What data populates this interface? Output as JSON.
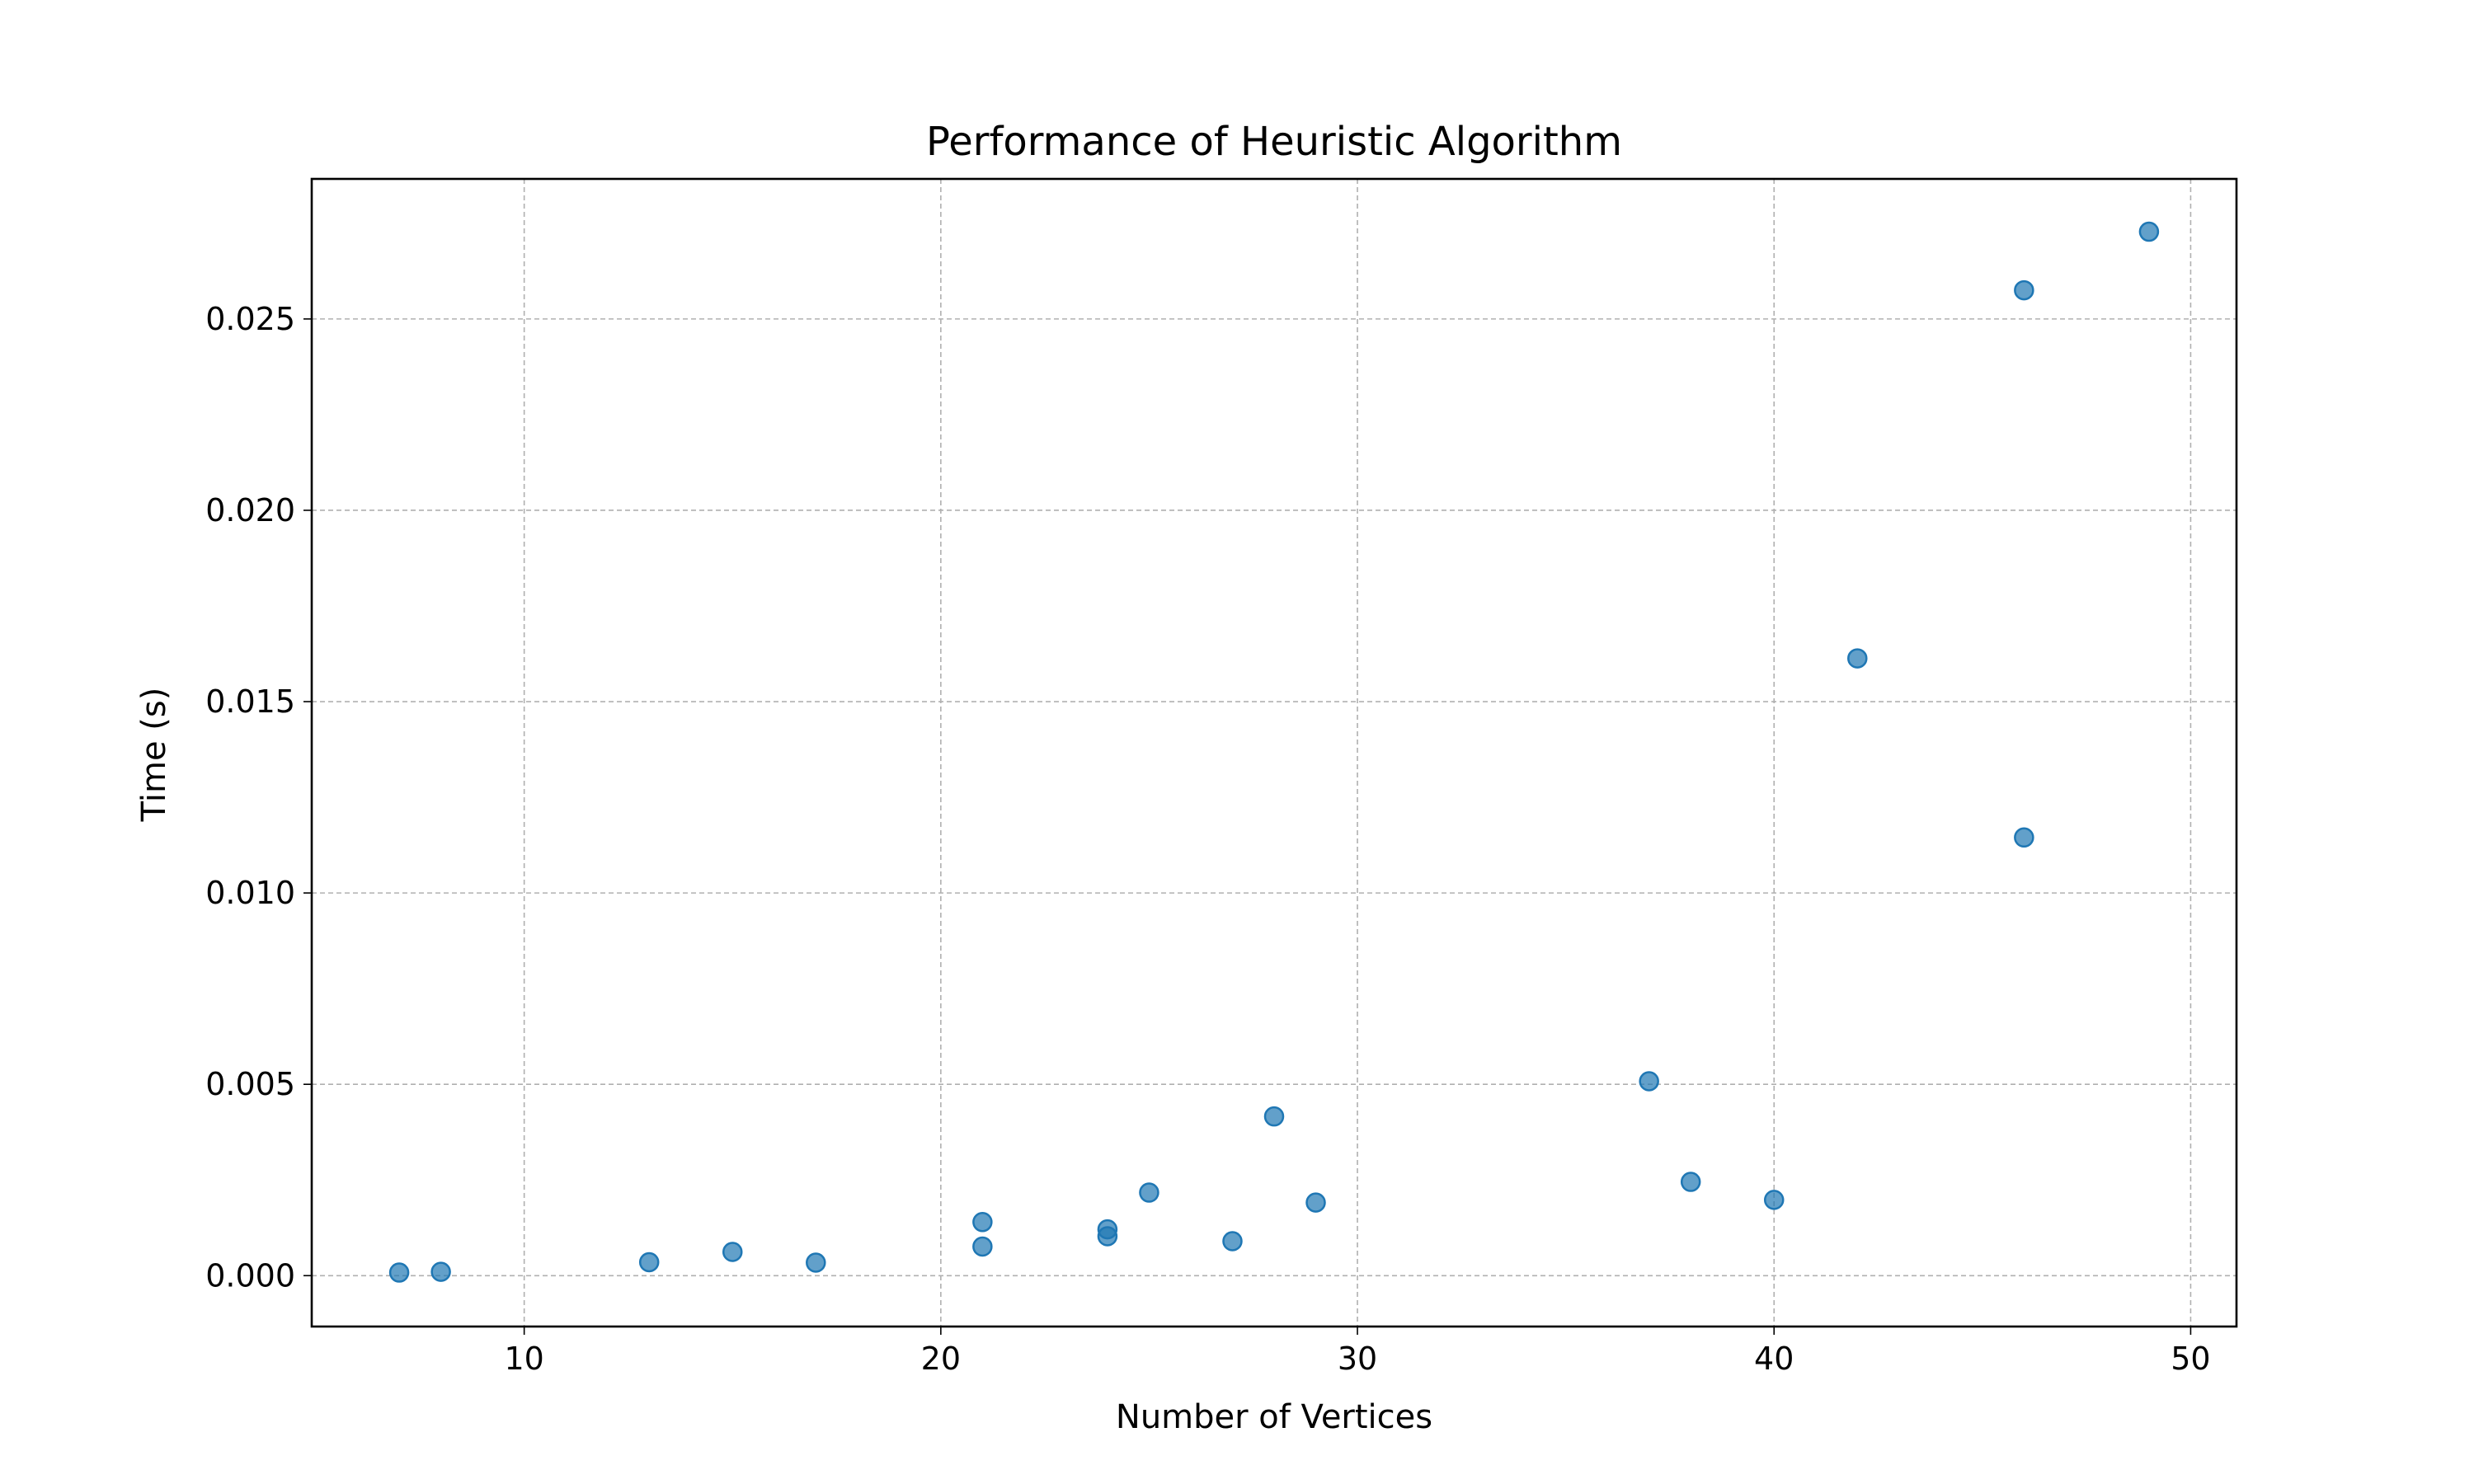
{
  "chart_data": {
    "type": "scatter",
    "title": "Performance of Heuristic Algorithm",
    "xlabel": "Number of Vertices",
    "ylabel": "Time (s)",
    "xlim": [
      4.9,
      51.1
    ],
    "ylim": [
      -0.00133,
      0.02866
    ],
    "xticks": [
      10,
      20,
      30,
      40,
      50
    ],
    "xtick_labels": [
      "10",
      "20",
      "30",
      "40",
      "50"
    ],
    "yticks": [
      0.0,
      0.005,
      0.01,
      0.015,
      0.02,
      0.025
    ],
    "ytick_labels": [
      "0.000",
      "0.005",
      "0.010",
      "0.015",
      "0.020",
      "0.025"
    ],
    "grid": true,
    "legend": "none",
    "colors": {
      "point_fill": "#1f77b4",
      "point_edge": "#1f77b4",
      "grid": "#b0b0b0",
      "axis": "#000000"
    },
    "series": [
      {
        "x": [
          7,
          8,
          13,
          15,
          17,
          21,
          21,
          24,
          24,
          25,
          27,
          28,
          29,
          37,
          38,
          40,
          42,
          46,
          46,
          49
        ],
        "y": [
          8e-05,
          0.0001,
          0.00035,
          0.00062,
          0.00034,
          0.0014,
          0.00076,
          0.00121,
          0.00103,
          0.00217,
          0.0009,
          0.00416,
          0.00191,
          0.00508,
          0.00245,
          0.00198,
          0.01613,
          0.01145,
          0.02575,
          0.02728
        ]
      }
    ]
  }
}
